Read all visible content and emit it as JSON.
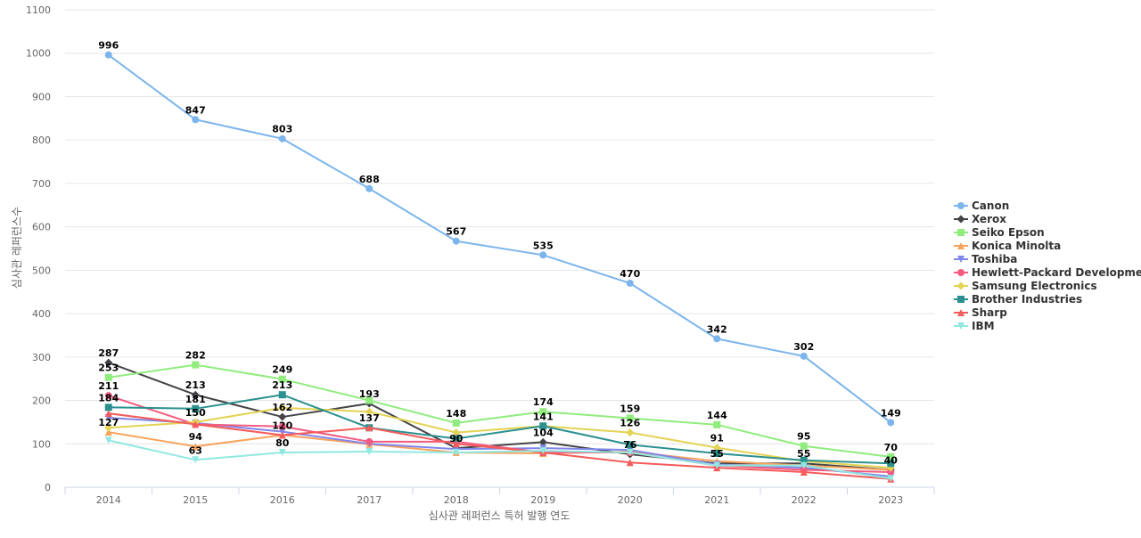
{
  "chart_data": {
    "type": "line",
    "title": "",
    "xlabel": "심사관 레퍼런스 특허 발행 연도",
    "ylabel": "심사관 레퍼런스수",
    "x": [
      "2014",
      "2015",
      "2016",
      "2017",
      "2018",
      "2019",
      "2020",
      "2021",
      "2022",
      "2023"
    ],
    "ylim": [
      0,
      1100
    ],
    "yticks": [
      0,
      100,
      200,
      300,
      400,
      500,
      600,
      700,
      800,
      900,
      1000,
      1100
    ],
    "grid": true,
    "legend_position": "right",
    "series": [
      {
        "name": "Canon",
        "color": "#7cb5ec",
        "marker": "circle",
        "values": [
          996,
          847,
          803,
          688,
          567,
          535,
          470,
          342,
          302,
          149
        ],
        "labels": [
          "996",
          "847",
          "803",
          "688",
          "567",
          "535",
          "470",
          "342",
          "302",
          "149"
        ]
      },
      {
        "name": "Xerox",
        "color": "#434348",
        "marker": "diamond",
        "values": [
          287,
          213,
          162,
          193,
          90,
          104,
          76,
          55,
          55,
          40
        ],
        "labels": [
          "287",
          "213",
          "162",
          "193",
          "90",
          "104",
          "76",
          "55",
          "55",
          "40"
        ]
      },
      {
        "name": "Seiko Epson",
        "color": "#90ed7d",
        "marker": "square",
        "values": [
          253,
          282,
          249,
          200,
          148,
          174,
          159,
          144,
          95,
          70
        ],
        "labels": [
          "253",
          "282",
          "249",
          "",
          "148",
          "174",
          "159",
          "144",
          "95",
          "70"
        ]
      },
      {
        "name": "Konica Minolta",
        "color": "#f7a35c",
        "marker": "triangle",
        "values": [
          127,
          94,
          120,
          99,
          80,
          78,
          82,
          60,
          50,
          40
        ],
        "labels": [
          "127",
          "94",
          "",
          "",
          "",
          "",
          "",
          "",
          "",
          ""
        ]
      },
      {
        "name": "Toshiba",
        "color": "#8085e9",
        "marker": "triangle-down",
        "values": [
          160,
          148,
          128,
          100,
          88,
          90,
          86,
          52,
          45,
          25
        ],
        "labels": [
          "",
          "",
          "",
          "",
          "",
          "",
          "",
          "",
          "",
          ""
        ]
      },
      {
        "name": "Hewlett-Packard Development",
        "color": "#f15c80",
        "marker": "circle",
        "values": [
          211,
          145,
          140,
          105,
          105,
          80,
          80,
          50,
          40,
          35
        ],
        "labels": [
          "211",
          "",
          "",
          "",
          "",
          "",
          "",
          "",
          "",
          ""
        ]
      },
      {
        "name": "Samsung Electronics",
        "color": "#e4d354",
        "marker": "diamond",
        "values": [
          137,
          150,
          183,
          174,
          126,
          141,
          126,
          91,
          60,
          45
        ],
        "labels": [
          "",
          "150",
          "",
          "",
          "",
          "141",
          "126",
          "91",
          "",
          ""
        ]
      },
      {
        "name": "Brother Industries",
        "color": "#2b908f",
        "marker": "square",
        "values": [
          184,
          181,
          213,
          137,
          112,
          141,
          98,
          78,
          62,
          55
        ],
        "labels": [
          "184",
          "181",
          "213",
          "137",
          "",
          "",
          "",
          "",
          "",
          ""
        ]
      },
      {
        "name": "Sharp",
        "color": "#f45b5b",
        "marker": "triangle",
        "values": [
          170,
          145,
          120,
          137,
          100,
          80,
          57,
          45,
          35,
          19
        ],
        "labels": [
          "",
          "",
          "120",
          "",
          "",
          "",
          "",
          "",
          "",
          ""
        ]
      },
      {
        "name": "IBM",
        "color": "#91e8e1",
        "marker": "triangle-down",
        "values": [
          108,
          63,
          80,
          82,
          80,
          84,
          80,
          50,
          50,
          20
        ],
        "labels": [
          "",
          "63",
          "80",
          "",
          "",
          "",
          "",
          "",
          "",
          ""
        ]
      }
    ]
  }
}
